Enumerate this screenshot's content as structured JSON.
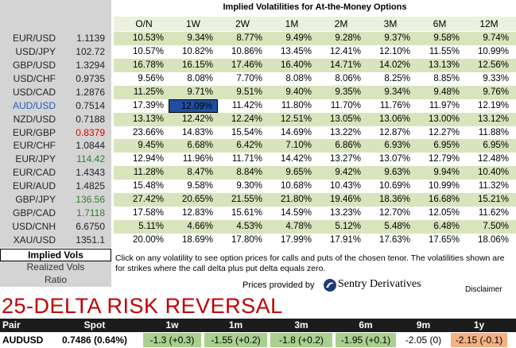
{
  "title": "Implied Volatilities for At-the-Money Options",
  "table": {
    "columns": [
      "O/N",
      "1W",
      "2W",
      "1M",
      "2M",
      "3M",
      "6M",
      "12M"
    ],
    "rows": [
      {
        "pair": "EUR/USD",
        "spot": "1.1139",
        "vols": [
          "10.53%",
          "9.34%",
          "8.77%",
          "9.49%",
          "9.28%",
          "9.37%",
          "9.58%",
          "9.74%"
        ]
      },
      {
        "pair": "USD/JPY",
        "spot": "102.72",
        "vols": [
          "10.57%",
          "10.82%",
          "10.86%",
          "13.45%",
          "12.41%",
          "12.10%",
          "11.55%",
          "10.99%"
        ]
      },
      {
        "pair": "GBP/USD",
        "spot": "1.3294",
        "vols": [
          "16.78%",
          "16.15%",
          "17.46%",
          "16.40%",
          "14.71%",
          "14.02%",
          "13.13%",
          "12.56%"
        ]
      },
      {
        "pair": "USD/CHF",
        "spot": "0.9735",
        "vols": [
          "9.56%",
          "8.08%",
          "7.70%",
          "8.08%",
          "8.06%",
          "8.25%",
          "8.85%",
          "9.33%"
        ]
      },
      {
        "pair": "USD/CAD",
        "spot": "1.2876",
        "vols": [
          "11.25%",
          "9.71%",
          "9.51%",
          "9.40%",
          "9.35%",
          "9.34%",
          "9.48%",
          "9.76%"
        ]
      },
      {
        "pair": "AUD/USD",
        "spot": "0.7514",
        "vols": [
          "17.39%",
          "12.09%",
          "11.42%",
          "11.80%",
          "11.70%",
          "11.76%",
          "11.97%",
          "12.19%"
        ]
      },
      {
        "pair": "NZD/USD",
        "spot": "0.7188",
        "vols": [
          "13.13%",
          "12.42%",
          "12.24%",
          "12.51%",
          "13.05%",
          "13.06%",
          "13.00%",
          "13.12%"
        ]
      },
      {
        "pair": "EUR/GBP",
        "spot": "0.8379",
        "vols": [
          "23.66%",
          "14.83%",
          "15.54%",
          "14.69%",
          "13.22%",
          "12.87%",
          "12.27%",
          "11.88%"
        ]
      },
      {
        "pair": "EUR/CHF",
        "spot": "1.0844",
        "vols": [
          "9.45%",
          "6.68%",
          "6.42%",
          "7.10%",
          "6.86%",
          "6.93%",
          "6.95%",
          "6.95%"
        ]
      },
      {
        "pair": "EUR/JPY",
        "spot": "114.42",
        "vols": [
          "12.94%",
          "11.96%",
          "11.71%",
          "14.42%",
          "13.27%",
          "13.07%",
          "12.79%",
          "12.48%"
        ]
      },
      {
        "pair": "EUR/CAD",
        "spot": "1.4343",
        "vols": [
          "11.28%",
          "8.47%",
          "8.84%",
          "9.65%",
          "9.42%",
          "9.63%",
          "9.94%",
          "10.40%"
        ]
      },
      {
        "pair": "EUR/AUD",
        "spot": "1.4825",
        "vols": [
          "15.48%",
          "9.58%",
          "9.30%",
          "10.68%",
          "10.43%",
          "10.69%",
          "10.99%",
          "11.32%"
        ]
      },
      {
        "pair": "GBP/JPY",
        "spot": "136.56",
        "vols": [
          "27.42%",
          "20.65%",
          "21.55%",
          "21.80%",
          "19.46%",
          "18.36%",
          "16.68%",
          "15.21%"
        ]
      },
      {
        "pair": "GBP/CAD",
        "spot": "1.7118",
        "vols": [
          "17.58%",
          "12.83%",
          "15.61%",
          "14.59%",
          "13.23%",
          "12.70%",
          "12.05%",
          "11.62%"
        ]
      },
      {
        "pair": "USD/CNH",
        "spot": "6.6750",
        "vols": [
          "5.11%",
          "4.66%",
          "4.53%",
          "4.78%",
          "5.12%",
          "5.48%",
          "6.48%",
          "7.50%"
        ]
      },
      {
        "pair": "XAU/USD",
        "spot": "1351.1",
        "vols": [
          "20.00%",
          "18.69%",
          "17.80%",
          "17.99%",
          "17.91%",
          "17.63%",
          "17.65%",
          "18.06%"
        ]
      }
    ]
  },
  "menu": [
    "Implied Vols",
    "Realized Vols",
    "Ratio"
  ],
  "note": "Click on any volatility to see option prices for calls and puts of the chosen tenor. The volatilities shown are for strikes where the call delta plus put delta equals zero.",
  "credit": {
    "label": "Prices provided by",
    "brand": "Sentry Derivatives"
  },
  "disclaimer": "Disclaimer",
  "risk_reversal": {
    "title": "25-DELTA RISK REVERSAL",
    "columns": [
      "Pair",
      "Spot",
      "1w",
      "1m",
      "3m",
      "6m",
      "9m",
      "1y"
    ],
    "rows": [
      [
        "AUDUSD",
        "0.7486 (0.64%)",
        "-1.3 (+0.3)",
        "-1.55 (+0.2)",
        "-1.8 (+0.2)",
        "-1.95 (+0.1)",
        "-2.05 (0)",
        "-2.15 (-0.1)"
      ]
    ]
  }
}
